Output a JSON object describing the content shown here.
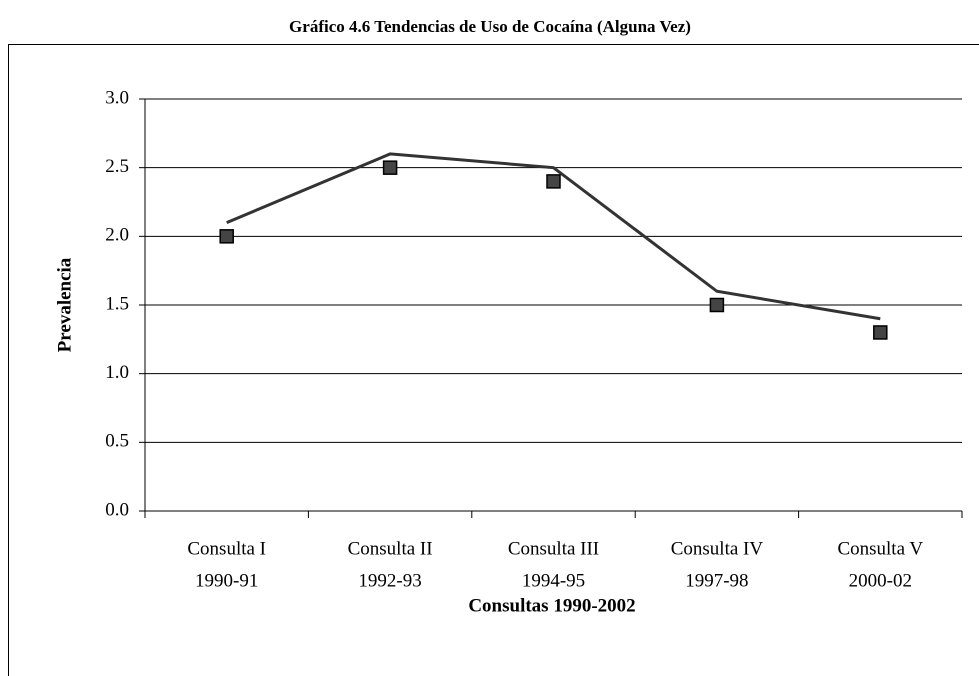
{
  "chart_data": {
    "type": "line",
    "title": "Gráfico 4.6 Tendencias de Uso de Cocaína (Alguna Vez)",
    "x_label": "Consultas 1990-2002",
    "y_label": "Prevalencia",
    "categories": [
      [
        "Consulta I",
        "1990-91"
      ],
      [
        "Consulta II",
        "1992-93"
      ],
      [
        "Consulta III",
        "1994-95"
      ],
      [
        "Consulta IV",
        "1997-98"
      ],
      [
        "Consulta V",
        "2000-02"
      ]
    ],
    "series": [
      {
        "color": "#333333",
        "style": "line",
        "values": [
          2.1,
          2.6,
          2.5,
          1.6,
          1.4
        ]
      },
      {
        "color": "#444444",
        "style": "marker",
        "values": [
          2.0,
          2.5,
          2.4,
          1.5,
          1.3
        ]
      }
    ],
    "ylim": [
      0,
      3
    ],
    "yticks": [
      {
        "value": 0,
        "label": "0.0"
      },
      0.5,
      {
        "value": 1,
        "label": "1.0"
      },
      1.5,
      {
        "value": 2,
        "label": "2.0"
      },
      2.5,
      {
        "value": 3,
        "label": "3.0"
      }
    ],
    "grid": true
  }
}
